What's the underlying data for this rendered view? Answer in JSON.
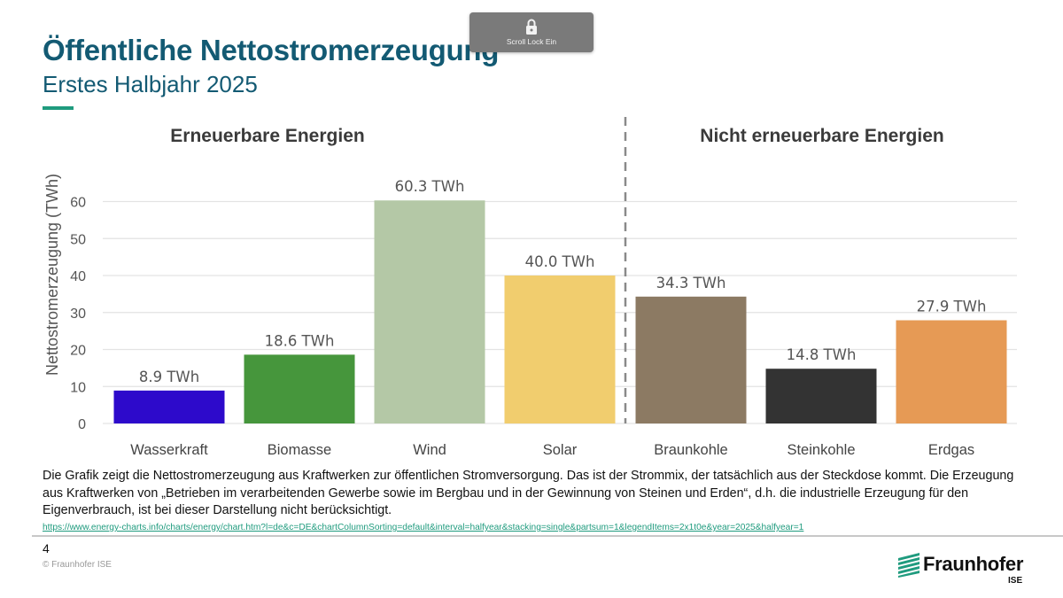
{
  "header": {
    "title": "Öffentliche Nettostromerzeugung",
    "subtitle": "Erstes Halbjahr 2025"
  },
  "overlay": {
    "label": "Scroll Lock Ein",
    "icon": "lock-icon"
  },
  "chart_data": {
    "type": "bar",
    "categories": [
      "Wasserkraft",
      "Biomasse",
      "Wind",
      "Solar",
      "Braunkohle",
      "Steinkohle",
      "Erdgas"
    ],
    "values": [
      8.9,
      18.6,
      60.3,
      40.0,
      34.3,
      14.8,
      27.9
    ],
    "value_labels": [
      "8.9 TWh",
      "18.6 TWh",
      "60.3 TWh",
      "40.0 TWh",
      "34.3 TWh",
      "14.8 TWh",
      "27.9 TWh"
    ],
    "colors": [
      "#2d0acb",
      "#46963c",
      "#b4c8a6",
      "#f1cd6e",
      "#8c7a63",
      "#333333",
      "#e69a55"
    ],
    "ylabel": "Nettostromerzeugung (TWh)",
    "xlabel": "",
    "ylim": [
      0,
      65
    ],
    "yticks": [
      0,
      10,
      20,
      30,
      40,
      50,
      60
    ],
    "grid": true,
    "groups": [
      {
        "label": "Erneuerbare Energien",
        "categories": [
          "Wasserkraft",
          "Biomasse",
          "Wind",
          "Solar"
        ]
      },
      {
        "label": "Nicht erneuerbare Energien",
        "categories": [
          "Braunkohle",
          "Steinkohle",
          "Erdgas"
        ]
      }
    ]
  },
  "footer": {
    "description": "Die Grafik zeigt die Nettostromerzeugung aus Kraftwerken zur öffentlichen Stromversorgung. Das ist der Strommix, der tatsächlich aus der Steckdose kommt. Die Erzeugung aus Kraftwerken von „Betrieben im verarbeitenden Gewerbe sowie im Bergbau und in der Gewinnung von Steinen und Erden“, d.h. die industrielle Erzeugung für den Eigenverbrauch, ist bei dieser Darstellung nicht berücksichtigt.",
    "source_url": "https://www.energy-charts.info/charts/energy/chart.htm?l=de&c=DE&chartColumnSorting=default&interval=halfyear&stacking=single&partsum=1&legendItems=2x1t0e&year=2025&halfyear=1",
    "page_number": "4",
    "copyright": "© Fraunhofer ISE",
    "logo_name": "Fraunhofer",
    "logo_sub": "ISE",
    "accent_color": "#1f9b7e",
    "title_color": "#135a73"
  }
}
